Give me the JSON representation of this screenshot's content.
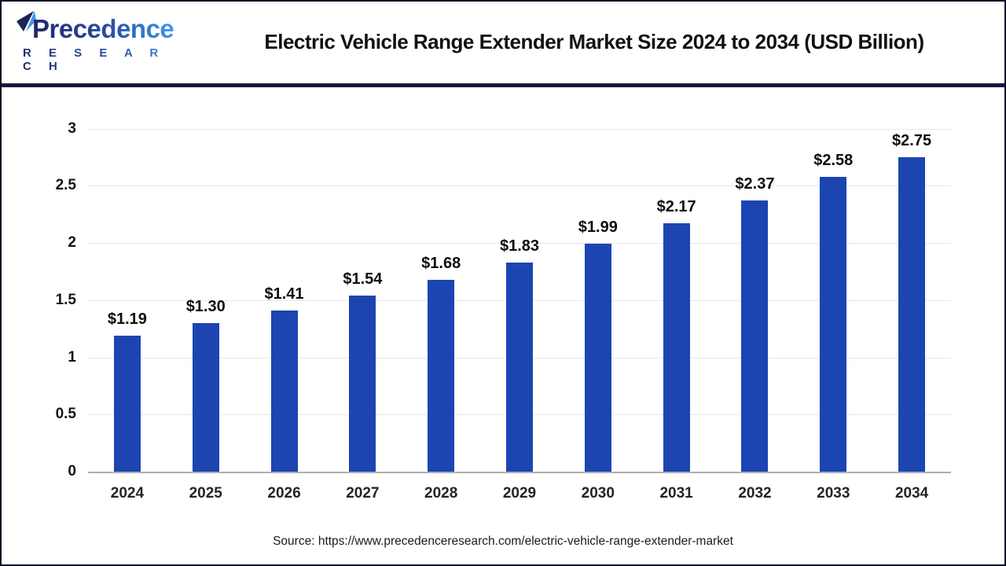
{
  "header": {
    "logo": {
      "name": "Precedence",
      "subtitle": "R E S E A R C H"
    },
    "title": "Electric Vehicle Range Extender Market Size 2024 to 2034 (USD Billion)"
  },
  "chart_data": {
    "type": "bar",
    "title": "Electric Vehicle Range Extender Market Size 2024 to 2034 (USD Billion)",
    "categories": [
      "2024",
      "2025",
      "2026",
      "2027",
      "2028",
      "2029",
      "2030",
      "2031",
      "2032",
      "2033",
      "2034"
    ],
    "values": [
      1.19,
      1.3,
      1.41,
      1.54,
      1.68,
      1.83,
      1.99,
      2.17,
      2.37,
      2.58,
      2.75
    ],
    "value_labels": [
      "$1.19",
      "$1.30",
      "$1.41",
      "$1.54",
      "$1.68",
      "$1.83",
      "$1.99",
      "$2.17",
      "$2.37",
      "$2.58",
      "$2.75"
    ],
    "xlabel": "",
    "ylabel": "",
    "ylim": [
      0,
      3
    ],
    "yticks": [
      "0",
      "0.5",
      "1",
      "1.5",
      "2",
      "2.5",
      "3"
    ],
    "grid": true,
    "legend": false,
    "bar_color": "#1c45b2"
  },
  "footer": {
    "source": "Source: https://www.precedenceresearch.com/electric-vehicle-range-extender-market"
  },
  "colors": {
    "bar": "#1c45b2",
    "separator": "#17173f",
    "gridline": "#e8e8e8",
    "axis_line": "#afafaf",
    "logo_dark": "#1f2869",
    "logo_light": "#3e99ea"
  }
}
